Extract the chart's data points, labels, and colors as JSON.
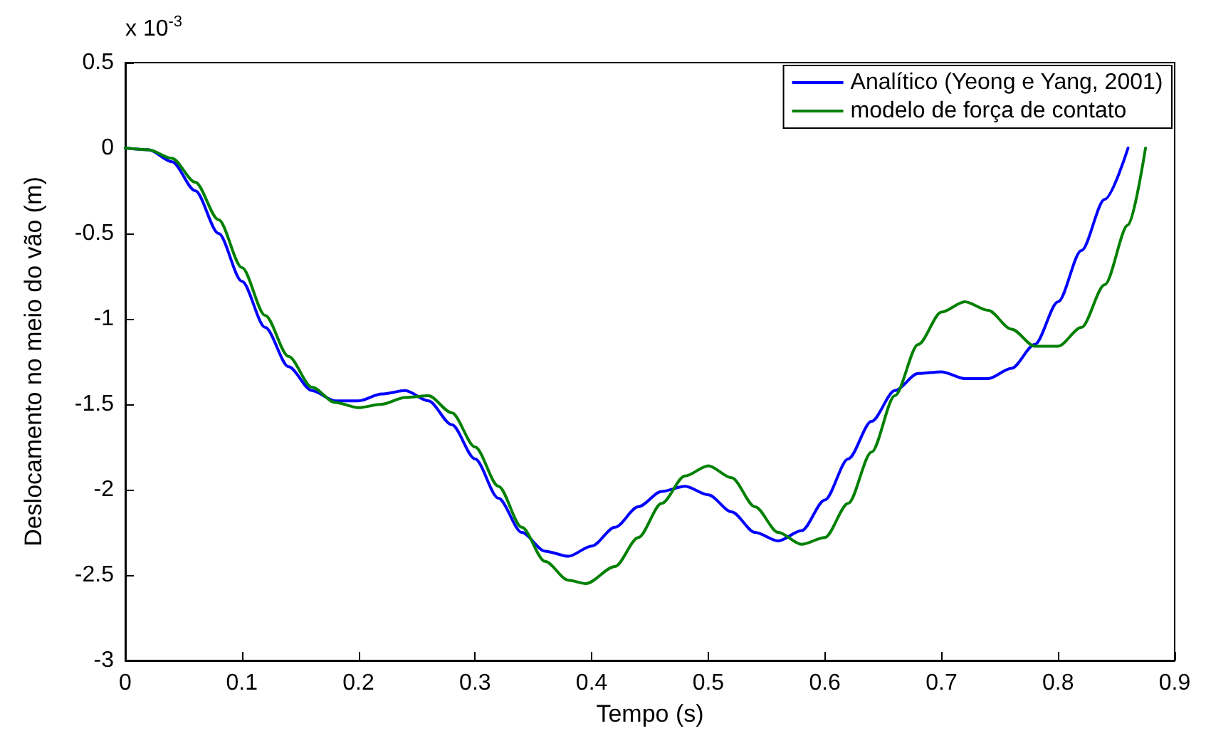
{
  "chart_data": {
    "type": "line",
    "xlabel": "Tempo (s)",
    "ylabel": "Deslocamento no meio do vão (m)",
    "annotations": [
      "x 10$^{-3}$"
    ],
    "xlim": [
      0,
      0.9
    ],
    "xticks": [
      0,
      0.1,
      0.2,
      0.3,
      0.4,
      0.5,
      0.6,
      0.7,
      0.8,
      0.9
    ],
    "ylim": [
      -3,
      0.5
    ],
    "yticks": [
      -3,
      -2.5,
      -2,
      -1.5,
      -1,
      -0.5,
      0,
      0.5
    ],
    "grid": false,
    "legend": "top right",
    "marker": "none",
    "line_style": "solid",
    "series": [
      {
        "name": "Analítico (Yeong e Yang, 2001)",
        "color": "#0000ff",
        "x": [
          0,
          0.02,
          0.04,
          0.06,
          0.08,
          0.1,
          0.12,
          0.14,
          0.16,
          0.18,
          0.2,
          0.22,
          0.24,
          0.26,
          0.28,
          0.3,
          0.32,
          0.34,
          0.36,
          0.38,
          0.4,
          0.42,
          0.44,
          0.46,
          0.48,
          0.5,
          0.52,
          0.54,
          0.56,
          0.58,
          0.6,
          0.62,
          0.64,
          0.66,
          0.68,
          0.7,
          0.72,
          0.74,
          0.76,
          0.78,
          0.8,
          0.82,
          0.84,
          0.86
        ],
        "values": [
          0,
          -0.01,
          -0.08,
          -0.25,
          -0.5,
          -0.78,
          -1.05,
          -1.28,
          -1.42,
          -1.48,
          -1.48,
          -1.44,
          -1.42,
          -1.48,
          -1.62,
          -1.82,
          -2.05,
          -2.25,
          -2.36,
          -2.39,
          -2.33,
          -2.22,
          -2.1,
          -2.01,
          -1.98,
          -2.03,
          -2.13,
          -2.25,
          -2.3,
          -2.24,
          -2.06,
          -1.82,
          -1.6,
          -1.42,
          -1.32,
          -1.31,
          -1.35,
          -1.35,
          -1.29,
          -1.15,
          -0.9,
          -0.6,
          -0.3,
          0
        ]
      },
      {
        "name": "modelo de força de contato",
        "color": "#008000",
        "x": [
          0,
          0.02,
          0.04,
          0.06,
          0.08,
          0.1,
          0.12,
          0.14,
          0.16,
          0.18,
          0.2,
          0.22,
          0.24,
          0.26,
          0.28,
          0.3,
          0.32,
          0.34,
          0.36,
          0.38,
          0.395,
          0.42,
          0.44,
          0.46,
          0.48,
          0.5,
          0.52,
          0.54,
          0.56,
          0.58,
          0.6,
          0.62,
          0.64,
          0.66,
          0.68,
          0.7,
          0.72,
          0.74,
          0.76,
          0.78,
          0.8,
          0.82,
          0.84,
          0.86,
          0.875
        ],
        "values": [
          0,
          -0.01,
          -0.06,
          -0.2,
          -0.42,
          -0.7,
          -0.98,
          -1.22,
          -1.4,
          -1.49,
          -1.52,
          -1.5,
          -1.46,
          -1.45,
          -1.55,
          -1.75,
          -1.98,
          -2.22,
          -2.42,
          -2.53,
          -2.55,
          -2.45,
          -2.28,
          -2.08,
          -1.92,
          -1.86,
          -1.93,
          -2.1,
          -2.25,
          -2.32,
          -2.28,
          -2.08,
          -1.78,
          -1.45,
          -1.15,
          -0.96,
          -0.9,
          -0.95,
          -1.06,
          -1.16,
          -1.16,
          -1.05,
          -0.8,
          -0.45,
          0
        ]
      }
    ]
  }
}
